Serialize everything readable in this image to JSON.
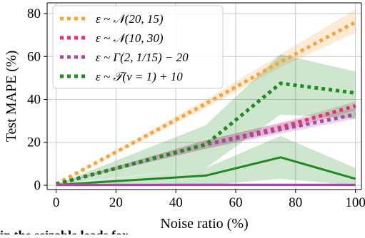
{
  "caption_fragment": "in the seizable leads for …",
  "colors": {
    "orange": "#F5A540",
    "magenta": "#E0336E",
    "purple": "#A24AA6",
    "green": "#1E8A22",
    "dark_yellow": "#C8A000",
    "grid": "#C9C9C9"
  },
  "chart_data": {
    "type": "line",
    "title": "",
    "xlabel": "Noise ratio (%)",
    "ylabel": "Test MAPE (%)",
    "xlim": [
      -3,
      102
    ],
    "ylim": [
      -2,
      85
    ],
    "xticks": [
      0,
      20,
      40,
      60,
      80,
      100
    ],
    "yticks": [
      0,
      20,
      40,
      60,
      80
    ],
    "grid": true,
    "legend_position": "top-left",
    "legend": [
      "ε ~ 𝒩(20, 15)",
      "ε ~ 𝒩(10, 30)",
      "ε ~ Γ(2, 1/15) − 20",
      "ε ~ 𝒯(ν = 1) + 10"
    ],
    "x": [
      0,
      50,
      75,
      100
    ],
    "series": [
      {
        "name": "ε ~ 𝒩(20, 15)",
        "color": "#F5A540",
        "style": "dotted",
        "values": [
          0.5,
          38,
          57.5,
          76
        ],
        "band_low": [
          0.5,
          36,
          55,
          71
        ],
        "band_high": [
          0.5,
          40,
          61,
          82
        ]
      },
      {
        "name": "ε ~ 𝒩(10, 30)",
        "color": "#E0336E",
        "style": "dotted",
        "values": [
          0.5,
          19,
          27,
          37
        ],
        "band_low": [
          0.5,
          17,
          25,
          35
        ],
        "band_high": [
          0.5,
          21,
          29,
          39
        ]
      },
      {
        "name": "ε ~ Γ(2, 1/15) − 20",
        "color": "#A24AA6",
        "style": "dotted",
        "values": [
          0.5,
          19,
          26,
          33
        ],
        "band_low": [
          0.5,
          17,
          24,
          31
        ],
        "band_high": [
          0.5,
          21,
          29,
          36
        ]
      },
      {
        "name": "ε ~ 𝒯(ν = 1) + 10",
        "color": "#1E8A22",
        "style": "dotted",
        "values": [
          0.5,
          19,
          47.5,
          43
        ],
        "band_low": [
          0.5,
          8,
          33,
          31
        ],
        "band_high": [
          0.5,
          28,
          61,
          53
        ]
      },
      {
        "color": "#1E8A22",
        "style": "solid",
        "values": [
          0.2,
          4.5,
          13,
          3
        ],
        "band_low": [
          0.2,
          0,
          3,
          0
        ],
        "band_high": [
          0.2,
          8,
          23,
          8
        ]
      },
      {
        "color": "#E0336E",
        "style": "solid",
        "values": [
          0.1,
          0.2,
          0.2,
          0.1
        ]
      },
      {
        "color": "#C8A000",
        "style": "solid",
        "values": [
          0.2,
          0.3,
          0.3,
          0.3
        ]
      },
      {
        "color": "#A24AA6",
        "style": "solid",
        "values": [
          0.1,
          0.15,
          0.15,
          0.15
        ]
      }
    ]
  }
}
